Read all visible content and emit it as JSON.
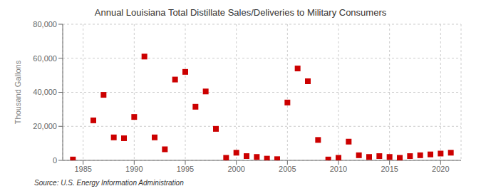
{
  "chart_data": {
    "type": "scatter",
    "title": "Annual Louisiana Total Distillate Sales/Deliveries to Military Consumers",
    "ylabel": "Thousand Gallons",
    "annotations": [
      "Source: U.S. Energy Information Administration"
    ],
    "x": [
      1984,
      1986,
      1987,
      1988,
      1989,
      1990,
      1991,
      1992,
      1993,
      1994,
      1995,
      1996,
      1997,
      1998,
      1999,
      2000,
      2001,
      2002,
      2003,
      2004,
      2005,
      2006,
      2007,
      2008,
      2009,
      2010,
      2011,
      2012,
      2013,
      2014,
      2015,
      2016,
      2017,
      2018,
      2019,
      2020,
      2021
    ],
    "values": [
      500,
      23500,
      38500,
      13500,
      13000,
      25500,
      61000,
      13500,
      6500,
      47500,
      52000,
      31500,
      40500,
      18500,
      1500,
      4500,
      2500,
      2000,
      1000,
      700,
      34000,
      54000,
      46500,
      12000,
      500,
      1500,
      11000,
      3000,
      2000,
      2500,
      2000,
      1500,
      2500,
      3000,
      3500,
      4000,
      4500
    ],
    "color": "#cc0000",
    "marker": "square",
    "xlim": [
      1983,
      2022
    ],
    "ylim": [
      0,
      80000
    ],
    "xticks": [
      1985,
      1990,
      1995,
      2000,
      2005,
      2010,
      2015,
      2020
    ],
    "yticks": [
      0,
      {
        "value": 20000,
        "label": "20,000"
      },
      {
        "value": 40000,
        "label": "40,000"
      },
      {
        "value": 60000,
        "label": "60,000"
      },
      {
        "value": 80000,
        "label": "80,000"
      }
    ],
    "grid": true
  }
}
